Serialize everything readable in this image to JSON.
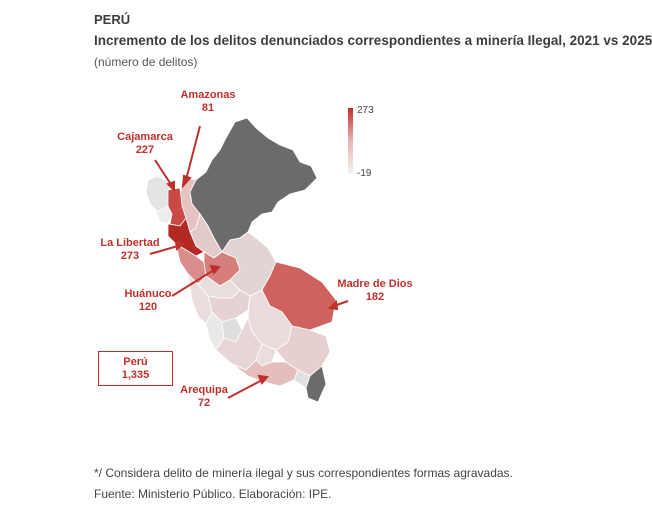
{
  "header": {
    "kicker": "PERÚ",
    "title": "Incremento de los delitos denunciados correspondientes a minería Ilegal, 2021 vs 2025",
    "subtitle": "(número de delitos)"
  },
  "legend": {
    "max_label": "273",
    "min_label": "-19",
    "color_high": "#c0302b",
    "color_low": "#f2f2f2"
  },
  "callouts": [
    {
      "name": "Amazonas",
      "value": "81"
    },
    {
      "name": "Cajamarca",
      "value": "227"
    },
    {
      "name": "La Libertad",
      "value": "273"
    },
    {
      "name": "Huánuco",
      "value": "120"
    },
    {
      "name": "Madre de Dios",
      "value": "182"
    },
    {
      "name": "Arequipa",
      "value": "72"
    }
  ],
  "total": {
    "name": "Perú",
    "value": "1,335"
  },
  "colors": {
    "no_data": "#6b6b6b",
    "accent": "#c0302b"
  },
  "notes": {
    "note1": "*/ Considera delito de minería ilegal y sus correspondientes formas agravadas.",
    "source": "Fuente: Ministerio Público. Elaboración: IPE."
  }
}
